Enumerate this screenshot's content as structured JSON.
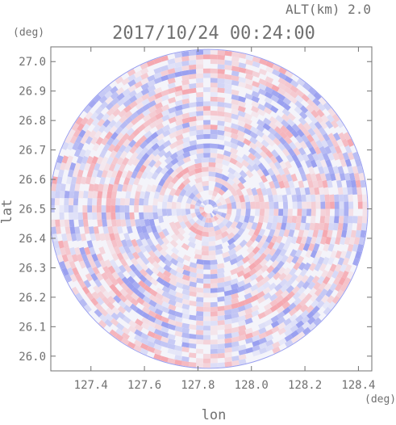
{
  "header": {
    "altitude_label": "ALT(km) 2.0",
    "timestamp": "2017/10/24 00:24:00"
  },
  "chart_data": {
    "type": "heatmap",
    "title": "2017/10/24 00:24:00",
    "annotation": "ALT(km) 2.0",
    "xlabel": "lon",
    "ylabel": "lat",
    "x_unit": "(deg)",
    "y_unit": "(deg)",
    "xlim": [
      127.25,
      128.45
    ],
    "ylim": [
      25.95,
      27.05
    ],
    "x_ticks": [
      127.4,
      127.6,
      127.8,
      128.0,
      128.2,
      128.4
    ],
    "x_tick_labels": [
      "127.4",
      "127.6",
      "127.8",
      "128.0",
      "128.2",
      "128.4"
    ],
    "y_ticks": [
      26.0,
      26.1,
      26.2,
      26.3,
      26.4,
      26.5,
      26.6,
      26.7,
      26.8,
      26.9,
      27.0
    ],
    "y_tick_labels": [
      "26.0",
      "26.1",
      "26.2",
      "26.3",
      "26.4",
      "26.5",
      "26.6",
      "26.7",
      "26.8",
      "26.9",
      "27.0"
    ],
    "center": {
      "lon": 127.84,
      "lat": 26.5
    },
    "radius_deg_lat": 0.54,
    "colormap": {
      "negative": "#9aa0f0",
      "neutral": "#f4f4fa",
      "positive": "#f5a8b0"
    },
    "grid": false,
    "legend": "none"
  }
}
